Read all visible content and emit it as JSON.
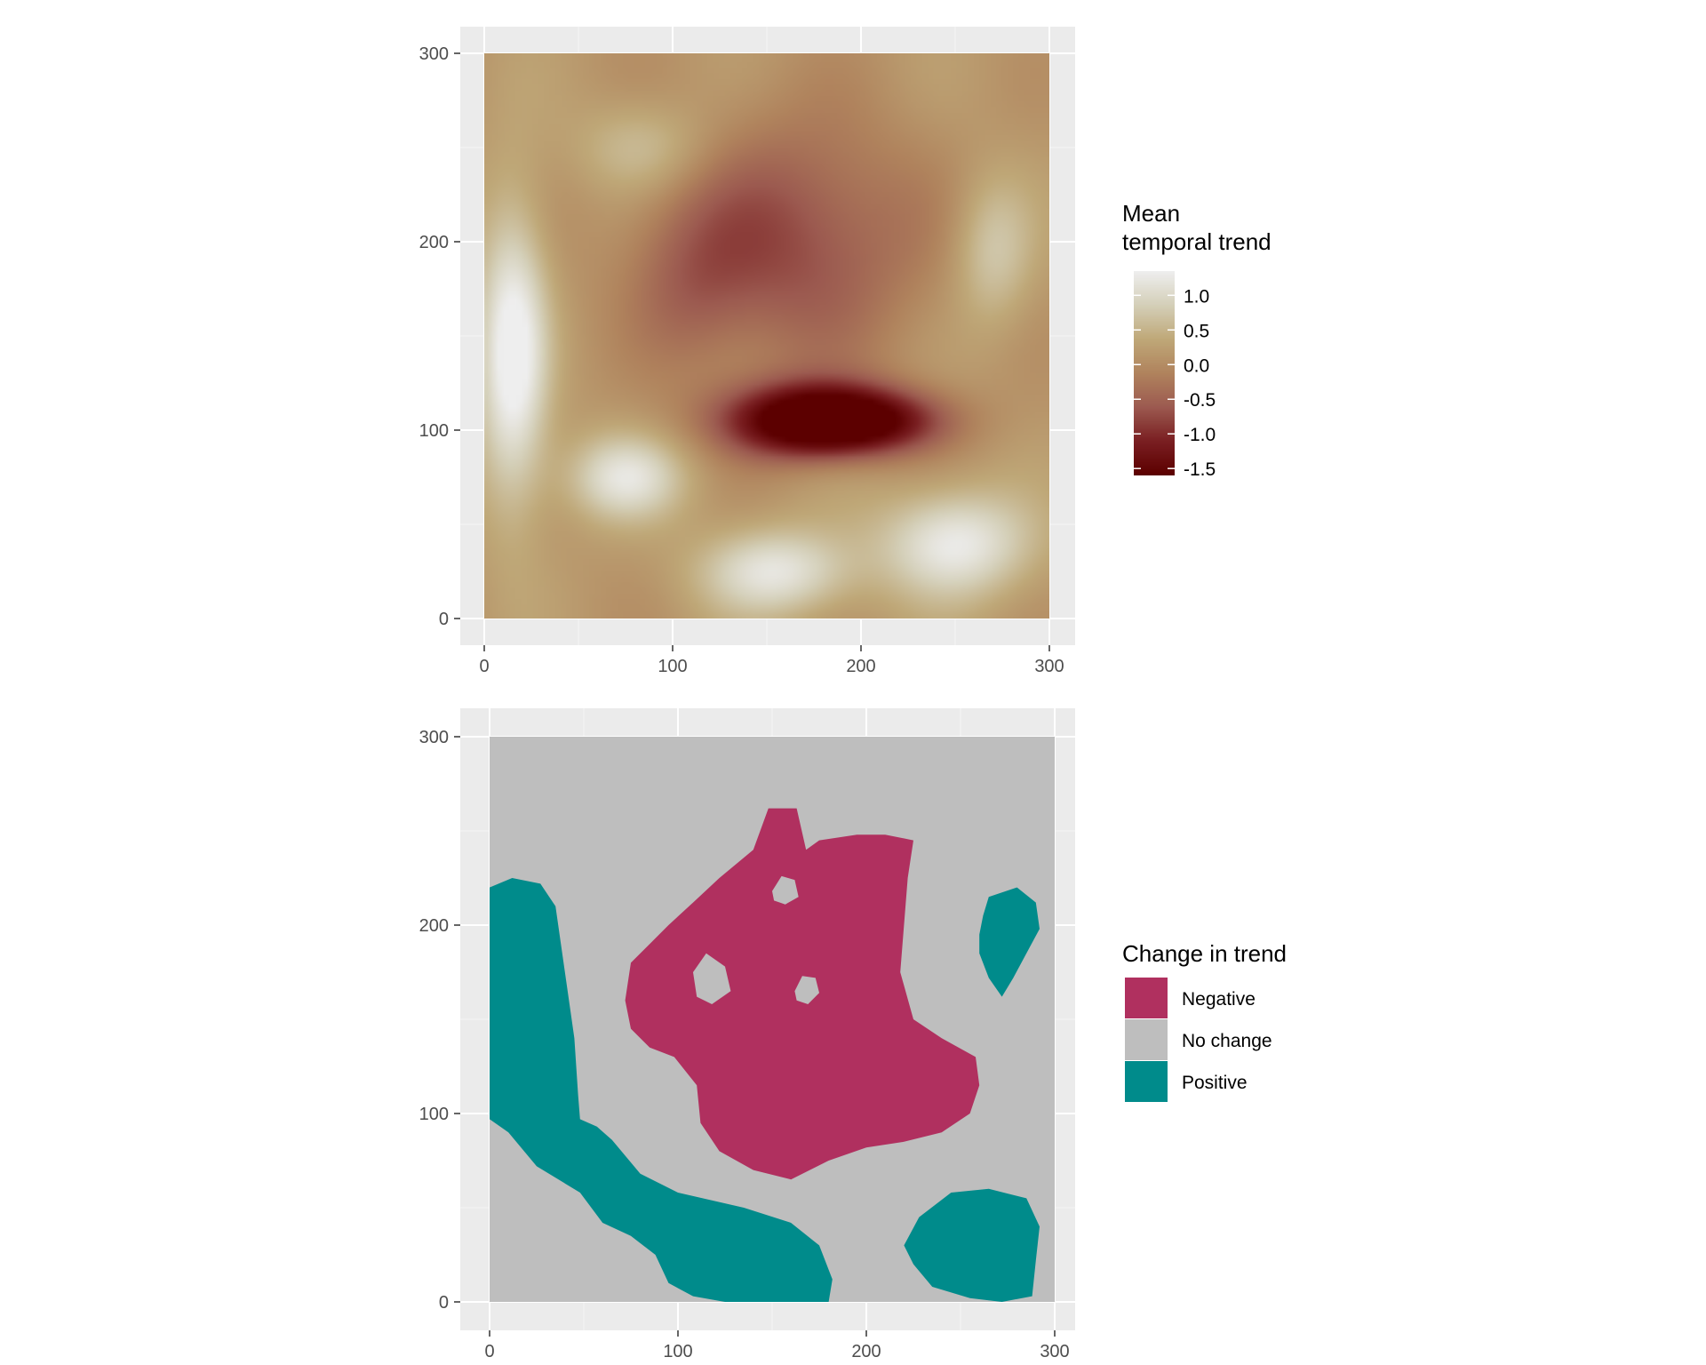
{
  "chart_data": [
    {
      "type": "heatmap",
      "xlim": [
        0,
        300
      ],
      "ylim": [
        0,
        300
      ],
      "x_ticks": [
        "0",
        "100",
        "200",
        "300"
      ],
      "y_ticks": [
        "0",
        "100",
        "200",
        "300"
      ],
      "grid": true,
      "legend": {
        "title_lines": [
          "Mean",
          "temporal trend"
        ],
        "labels": [
          "1.0",
          "0.5",
          "0.0",
          "-0.5",
          "-1.0",
          "-1.5"
        ],
        "values": [
          1.0,
          0.5,
          0.0,
          -0.5,
          -1.0,
          -1.5
        ],
        "range": [
          -1.6,
          1.35
        ],
        "placement": "right",
        "colors": [
          "#5c0000",
          "#7a1f22",
          "#9c5a50",
          "#b0835d",
          "#bfa878",
          "#d4cfb8",
          "#eeeeee"
        ]
      },
      "field": {
        "base": 0.15,
        "features": [
          {
            "x": 15,
            "y": 140,
            "sx": 13,
            "sy": 55,
            "v": 1.35
          },
          {
            "x": 75,
            "y": 75,
            "sx": 22,
            "sy": 16,
            "v": 1.0
          },
          {
            "x": 155,
            "y": 25,
            "sx": 28,
            "sy": 16,
            "v": 1.05
          },
          {
            "x": 250,
            "y": 40,
            "sx": 28,
            "sy": 20,
            "v": 1.15
          },
          {
            "x": 270,
            "y": 195,
            "sx": 15,
            "sy": 28,
            "v": 0.65
          },
          {
            "x": 85,
            "y": 250,
            "sx": 25,
            "sy": 18,
            "v": 0.55
          },
          {
            "x": 170,
            "y": 105,
            "sx": 32,
            "sy": 14,
            "v": -1.9
          },
          {
            "x": 205,
            "y": 105,
            "sx": 30,
            "sy": 12,
            "v": -1.25
          },
          {
            "x": 160,
            "y": 200,
            "sx": 50,
            "sy": 45,
            "v": -0.9
          },
          {
            "x": 110,
            "y": 175,
            "sx": 22,
            "sy": 30,
            "v": -0.35
          }
        ]
      }
    },
    {
      "type": "heatmap",
      "xlim": [
        0,
        300
      ],
      "ylim": [
        0,
        300
      ],
      "x_ticks": [
        "0",
        "100",
        "200",
        "300"
      ],
      "y_ticks": [
        "0",
        "100",
        "200",
        "300"
      ],
      "grid": true,
      "legend": {
        "title": "Change in trend",
        "placement": "right",
        "items": [
          {
            "label": "Negative",
            "color": "#b0305f"
          },
          {
            "label": "No change",
            "color": "#bebebe"
          },
          {
            "label": "Positive",
            "color": "#008b8b"
          }
        ]
      },
      "background": "#bebebe",
      "regions": [
        {
          "category": "Positive",
          "color": "#008b8b",
          "points": [
            [
              0,
              97
            ],
            [
              10,
              90
            ],
            [
              25,
              72
            ],
            [
              48,
              58
            ],
            [
              60,
              42
            ],
            [
              75,
              35
            ],
            [
              88,
              25
            ],
            [
              95,
              10
            ],
            [
              108,
              3
            ],
            [
              125,
              0
            ],
            [
              180,
              0
            ],
            [
              182,
              12
            ],
            [
              175,
              30
            ],
            [
              160,
              42
            ],
            [
              135,
              50
            ],
            [
              100,
              58
            ],
            [
              80,
              68
            ],
            [
              65,
              86
            ],
            [
              57,
              93
            ],
            [
              48,
              97
            ],
            [
              47,
              110
            ],
            [
              45,
              140
            ],
            [
              40,
              175
            ],
            [
              35,
              210
            ],
            [
              27,
              222
            ],
            [
              12,
              225
            ],
            [
              0,
              220
            ]
          ]
        },
        {
          "category": "Positive",
          "color": "#008b8b",
          "points": [
            [
              225,
              20
            ],
            [
              235,
              8
            ],
            [
              255,
              2
            ],
            [
              272,
              0
            ],
            [
              288,
              3
            ],
            [
              290,
              22
            ],
            [
              292,
              40
            ],
            [
              285,
              55
            ],
            [
              265,
              60
            ],
            [
              245,
              58
            ],
            [
              228,
              45
            ],
            [
              220,
              30
            ]
          ]
        },
        {
          "category": "Positive",
          "color": "#008b8b",
          "points": [
            [
              260,
              195
            ],
            [
              262,
              205
            ],
            [
              265,
              215
            ],
            [
              280,
              220
            ],
            [
              290,
              212
            ],
            [
              292,
              198
            ],
            [
              285,
              185
            ],
            [
              278,
              172
            ],
            [
              272,
              162
            ],
            [
              265,
              172
            ],
            [
              260,
              185
            ]
          ]
        },
        {
          "category": "Negative",
          "color": "#b0305f",
          "points": [
            [
              72,
              160
            ],
            [
              75,
              180
            ],
            [
              85,
              190
            ],
            [
              95,
              200
            ],
            [
              108,
              212
            ],
            [
              122,
              225
            ],
            [
              140,
              240
            ],
            [
              148,
              262
            ],
            [
              163,
              262
            ],
            [
              168,
              240
            ],
            [
              175,
              245
            ],
            [
              195,
              248
            ],
            [
              210,
              248
            ],
            [
              225,
              245
            ],
            [
              222,
              225
            ],
            [
              220,
              200
            ],
            [
              218,
              175
            ],
            [
              225,
              150
            ],
            [
              240,
              140
            ],
            [
              258,
              130
            ],
            [
              260,
              115
            ],
            [
              255,
              100
            ],
            [
              240,
              90
            ],
            [
              220,
              85
            ],
            [
              200,
              82
            ],
            [
              180,
              75
            ],
            [
              160,
              65
            ],
            [
              140,
              70
            ],
            [
              122,
              80
            ],
            [
              112,
              95
            ],
            [
              110,
              115
            ],
            [
              98,
              130
            ],
            [
              85,
              135
            ],
            [
              75,
              145
            ]
          ]
        },
        {
          "category": "No change",
          "color": "#bebebe",
          "points": [
            [
              108,
              175
            ],
            [
              115,
              185
            ],
            [
              125,
              178
            ],
            [
              128,
              165
            ],
            [
              118,
              158
            ],
            [
              110,
              162
            ]
          ]
        },
        {
          "category": "No change",
          "color": "#bebebe",
          "points": [
            [
              150,
              218
            ],
            [
              155,
              226
            ],
            [
              162,
              224
            ],
            [
              164,
              215
            ],
            [
              157,
              211
            ],
            [
              151,
              213
            ]
          ]
        },
        {
          "category": "No change",
          "color": "#bebebe",
          "points": [
            [
              162,
              165
            ],
            [
              166,
              173
            ],
            [
              173,
              172
            ],
            [
              175,
              164
            ],
            [
              169,
              158
            ],
            [
              163,
              160
            ]
          ]
        }
      ]
    }
  ]
}
